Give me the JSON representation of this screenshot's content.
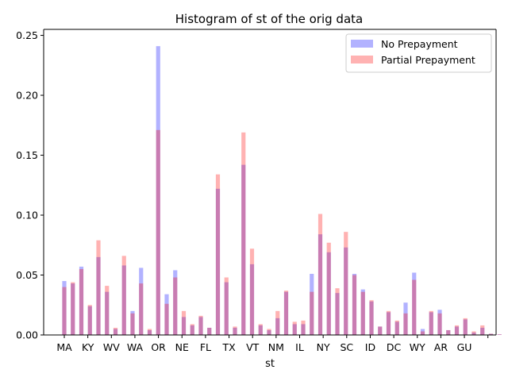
{
  "chart_data": {
    "type": "bar",
    "title": "Histogram of st of the orig data",
    "xlabel": "st",
    "ylabel": "",
    "ylim": [
      0,
      0.255
    ],
    "y_ticks": [
      0.0,
      0.05,
      0.1,
      0.15,
      0.2,
      0.25
    ],
    "y_tick_labels": [
      "0.00",
      "0.05",
      "0.10",
      "0.15",
      "0.20",
      "0.25"
    ],
    "x_tick_labels": [
      "MA",
      "KY",
      "WV",
      "WA",
      "OR",
      "NE",
      "FL",
      "TX",
      "VT",
      "NM",
      "IL",
      "NY",
      "SC",
      "ID",
      "DC",
      "WY",
      "AR",
      "GU",
      ""
    ],
    "grid": false,
    "legend_position": "top-right",
    "series": [
      {
        "name": "No Prepayment",
        "color": "#0000ff",
        "opacity": 0.3,
        "values": [
          0.045,
          0.043,
          0.057,
          0.024,
          0.065,
          0.036,
          0.005,
          0.058,
          0.02,
          0.056,
          0.004,
          0.241,
          0.034,
          0.054,
          0.015,
          0.008,
          0.015,
          0.006,
          0.122,
          0.044,
          0.006,
          0.142,
          0.059,
          0.008,
          0.004,
          0.014,
          0.036,
          0.009,
          0.009,
          0.051,
          0.084,
          0.069,
          0.035,
          0.073,
          0.051,
          0.038,
          0.028,
          0.007,
          0.019,
          0.011,
          0.027,
          0.052,
          0.005,
          0.019,
          0.021,
          0.004,
          0.007,
          0.013,
          0.002,
          0.006,
          0.001,
          0.0005
        ]
      },
      {
        "name": "Partial Prepayment",
        "color": "#ff0000",
        "opacity": 0.3,
        "values": [
          0.04,
          0.044,
          0.055,
          0.025,
          0.079,
          0.041,
          0.006,
          0.066,
          0.018,
          0.043,
          0.005,
          0.171,
          0.026,
          0.048,
          0.02,
          0.009,
          0.016,
          0.006,
          0.134,
          0.048,
          0.007,
          0.169,
          0.072,
          0.009,
          0.005,
          0.02,
          0.037,
          0.011,
          0.012,
          0.036,
          0.101,
          0.077,
          0.039,
          0.086,
          0.05,
          0.036,
          0.029,
          0.007,
          0.02,
          0.012,
          0.018,
          0.046,
          0.003,
          0.02,
          0.018,
          0.004,
          0.008,
          0.014,
          0.003,
          0.008,
          0.001,
          0.0005
        ]
      }
    ]
  }
}
